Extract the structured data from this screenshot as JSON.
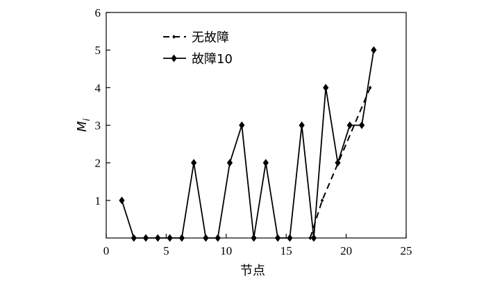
{
  "chart_data": {
    "type": "line",
    "title": "",
    "xlabel": "节点",
    "ylabel_main": "M",
    "ylabel_sub": "i",
    "xlim": [
      0,
      25
    ],
    "ylim": [
      0,
      6
    ],
    "xticks": [
      0,
      5,
      10,
      15,
      20,
      25
    ],
    "yticks": [
      1,
      2,
      3,
      4,
      5,
      6
    ],
    "grid": false,
    "legend_position": "top-left",
    "series": [
      {
        "name": "无故障",
        "style": "dashed",
        "marker": "small-diamond",
        "color": "#000000",
        "x": [
          17,
          18,
          22
        ],
        "y": [
          0,
          1,
          4
        ]
      },
      {
        "name": "故障10",
        "style": "solid",
        "marker": "diamond",
        "color": "#000000",
        "x": [
          1.3,
          2.3,
          3.3,
          4.3,
          5.3,
          6.3,
          7.3,
          8.3,
          9.3,
          10.3,
          11.3,
          12.3,
          13.3,
          14.3,
          15.3,
          16.3,
          17.3,
          18.3,
          19.3,
          20.3,
          21.3,
          22.3
        ],
        "y": [
          1,
          0,
          0,
          0,
          0,
          0,
          2,
          0,
          0,
          2,
          3,
          0,
          2,
          0,
          0,
          3,
          0,
          4,
          2,
          3,
          3,
          5
        ]
      }
    ]
  }
}
